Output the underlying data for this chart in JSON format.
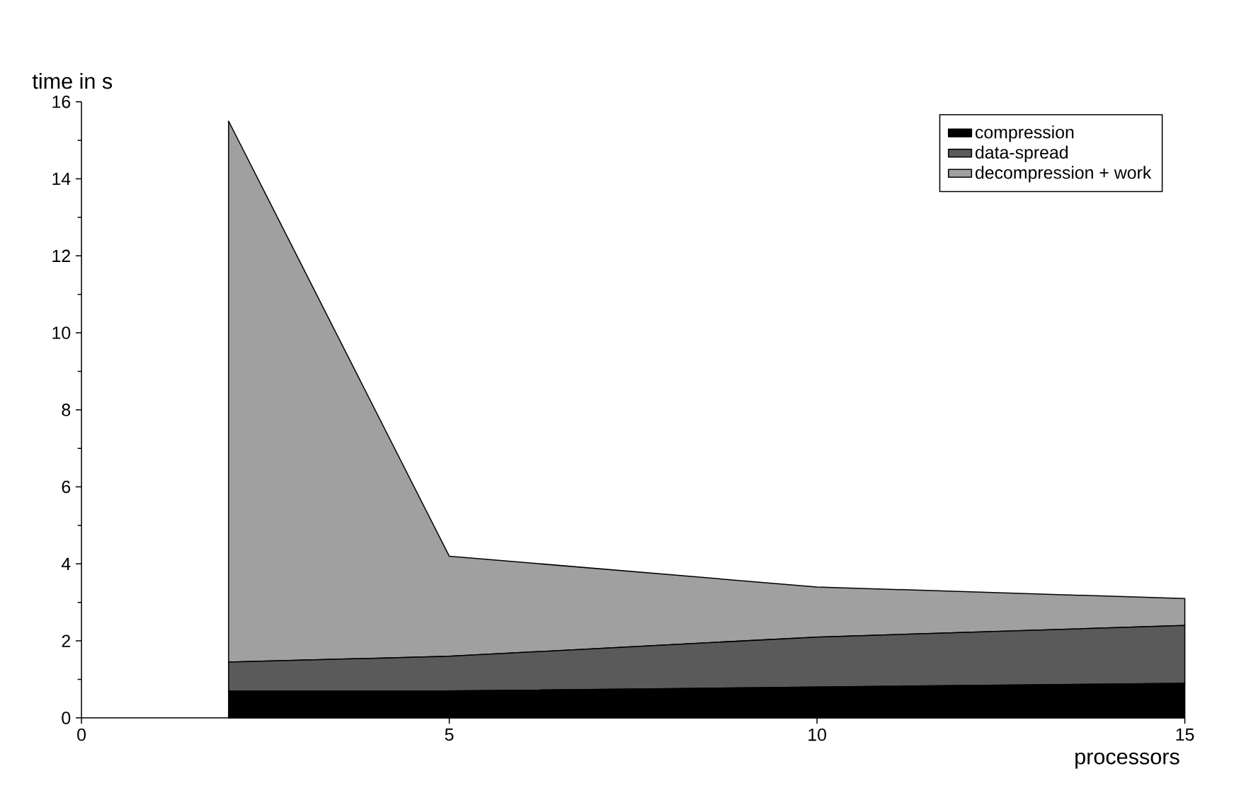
{
  "chart_data": {
    "type": "area",
    "stacked": true,
    "xlabel": "processors",
    "ylabel": "time in s",
    "x": [
      2,
      5,
      10,
      15
    ],
    "series": [
      {
        "name": "compression",
        "color": "#000000",
        "values": [
          0.7,
          0.7,
          0.8,
          0.9
        ]
      },
      {
        "name": "data-spread",
        "color": "#5a5a5a",
        "values": [
          0.75,
          0.9,
          1.3,
          1.5
        ]
      },
      {
        "name": "decompression + work",
        "color": "#a0a0a0",
        "values": [
          14.05,
          2.6,
          1.3,
          0.7
        ]
      }
    ],
    "xlim": [
      0,
      15
    ],
    "ylim": [
      0,
      16
    ],
    "xticks": [
      0,
      5,
      10,
      15
    ],
    "yticks": [
      0,
      2,
      4,
      6,
      8,
      10,
      12,
      14,
      16
    ],
    "legend": "top right"
  }
}
